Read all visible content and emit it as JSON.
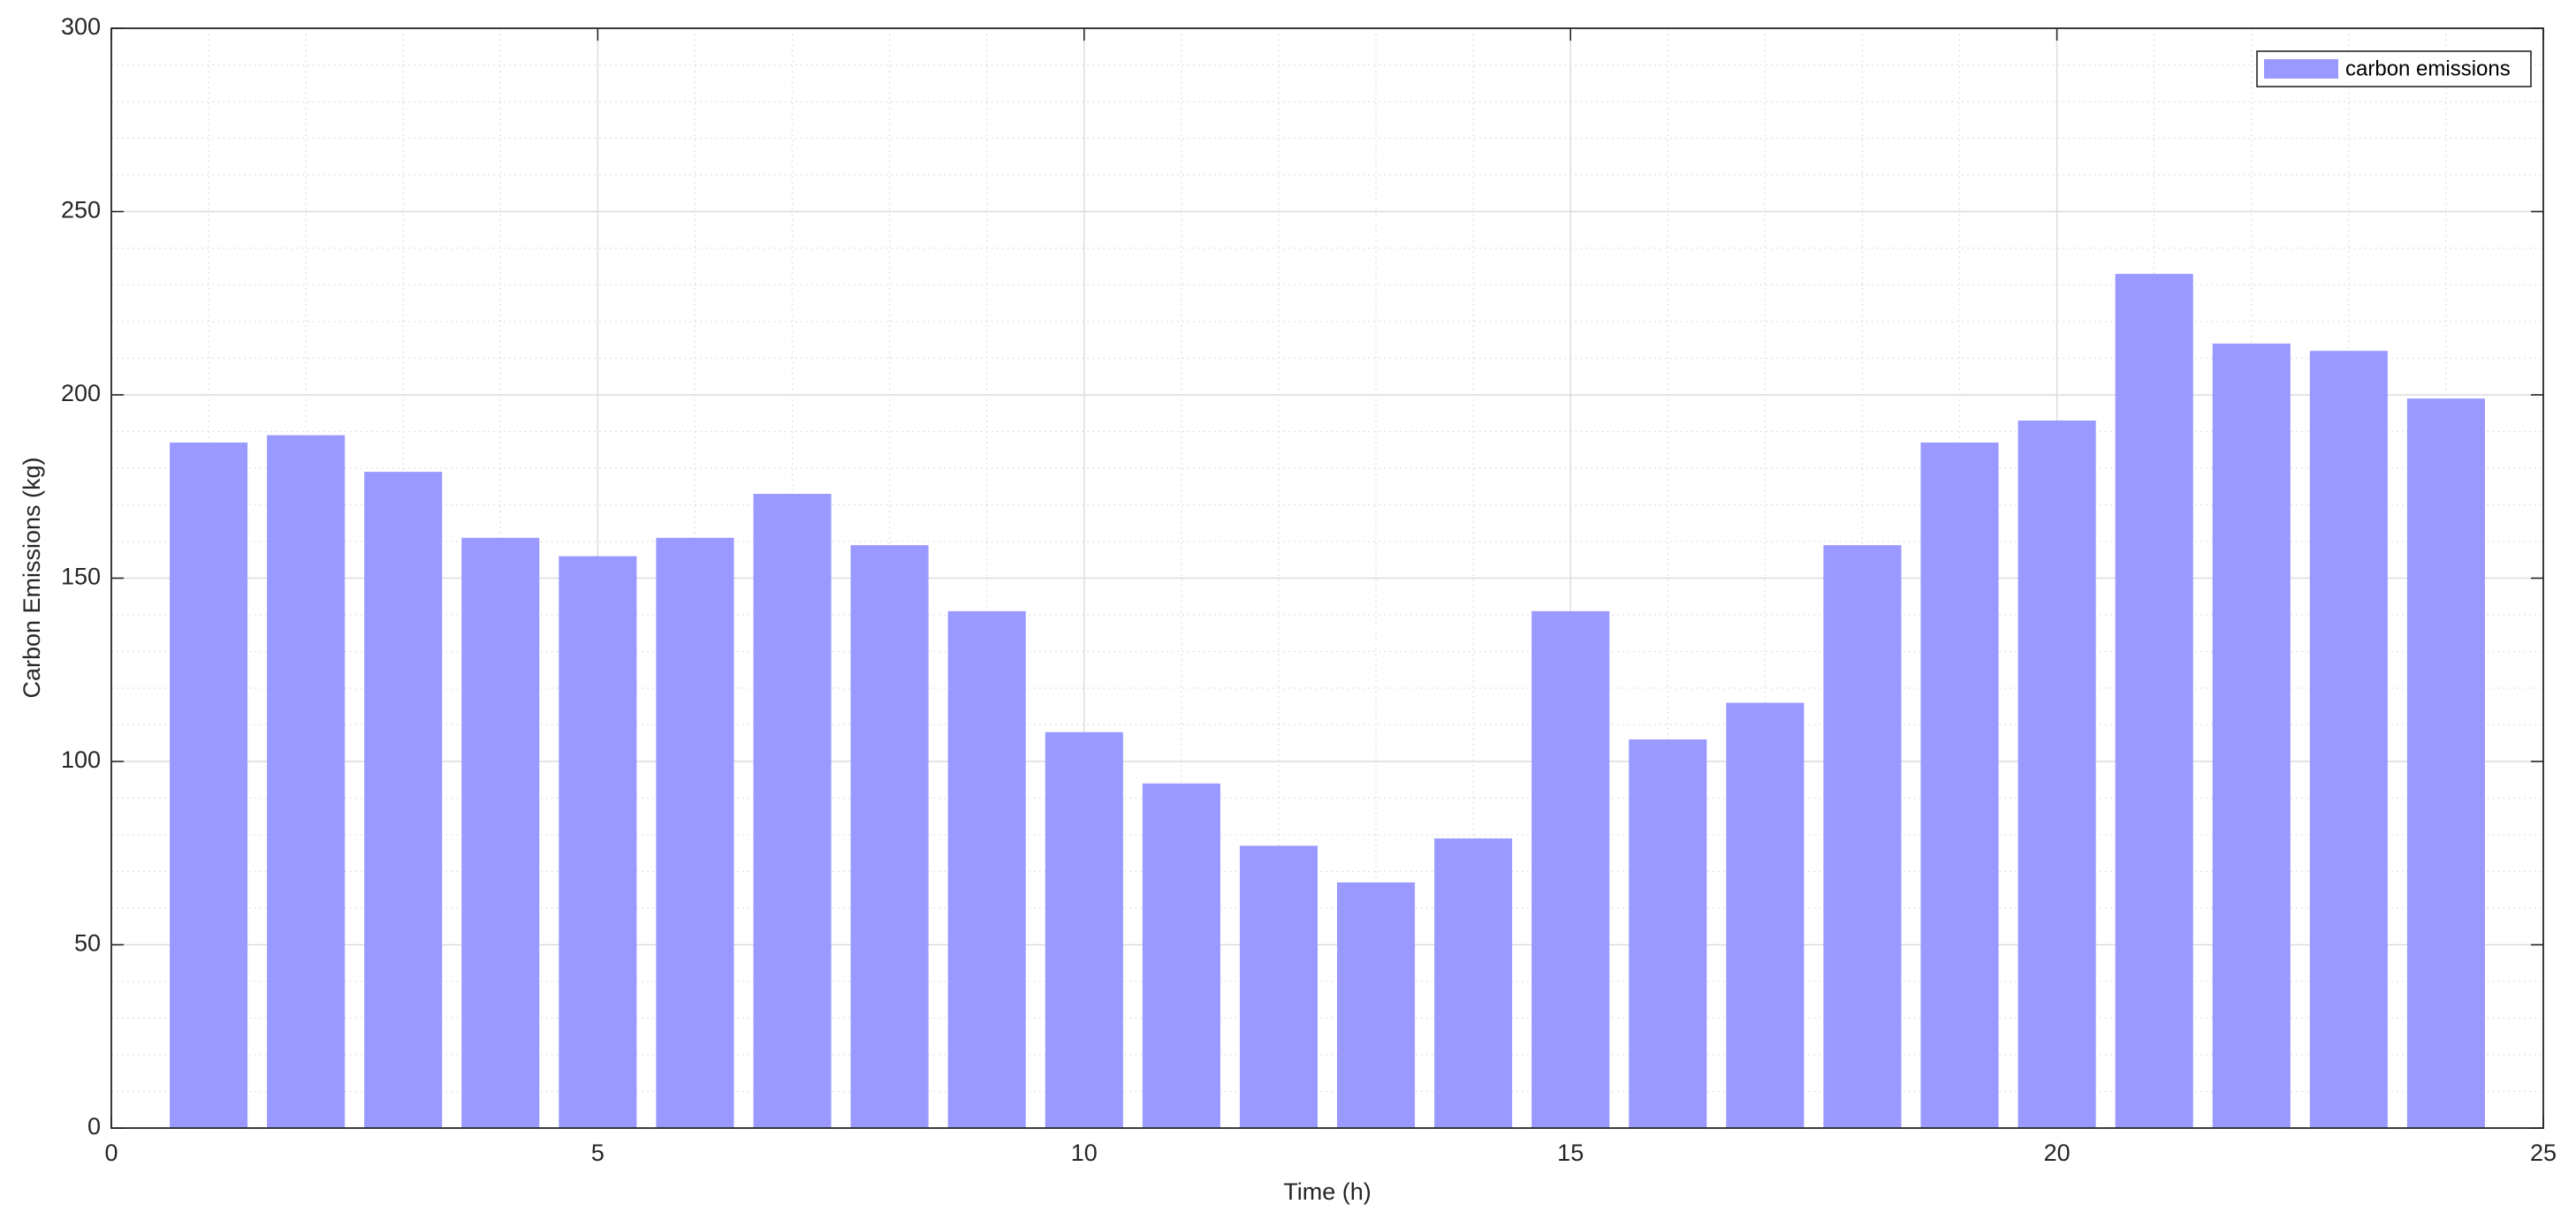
{
  "chart_data": {
    "type": "bar",
    "x_label": "Time (h)",
    "y_label": "Carbon Emissions (kg)",
    "x": [
      1,
      2,
      3,
      4,
      5,
      6,
      7,
      8,
      9,
      10,
      11,
      12,
      13,
      14,
      15,
      16,
      17,
      18,
      19,
      20,
      21,
      22,
      23,
      24
    ],
    "series": [
      {
        "name": "carbon emissions",
        "color": "#9999ff",
        "values": [
          187,
          189,
          179,
          161,
          156,
          161,
          173,
          159,
          141,
          108,
          94,
          77,
          67,
          79,
          141,
          106,
          116,
          159,
          187,
          193,
          233,
          214,
          212,
          199
        ]
      }
    ],
    "xlim": [
      0,
      25
    ],
    "xticks": [
      0,
      5,
      10,
      15,
      20,
      25
    ],
    "ylim": [
      0,
      300
    ],
    "yticks": [
      0,
      50,
      100,
      150,
      200,
      250,
      300
    ],
    "grid": true,
    "minor_grid": true,
    "legend": "upper-right"
  }
}
